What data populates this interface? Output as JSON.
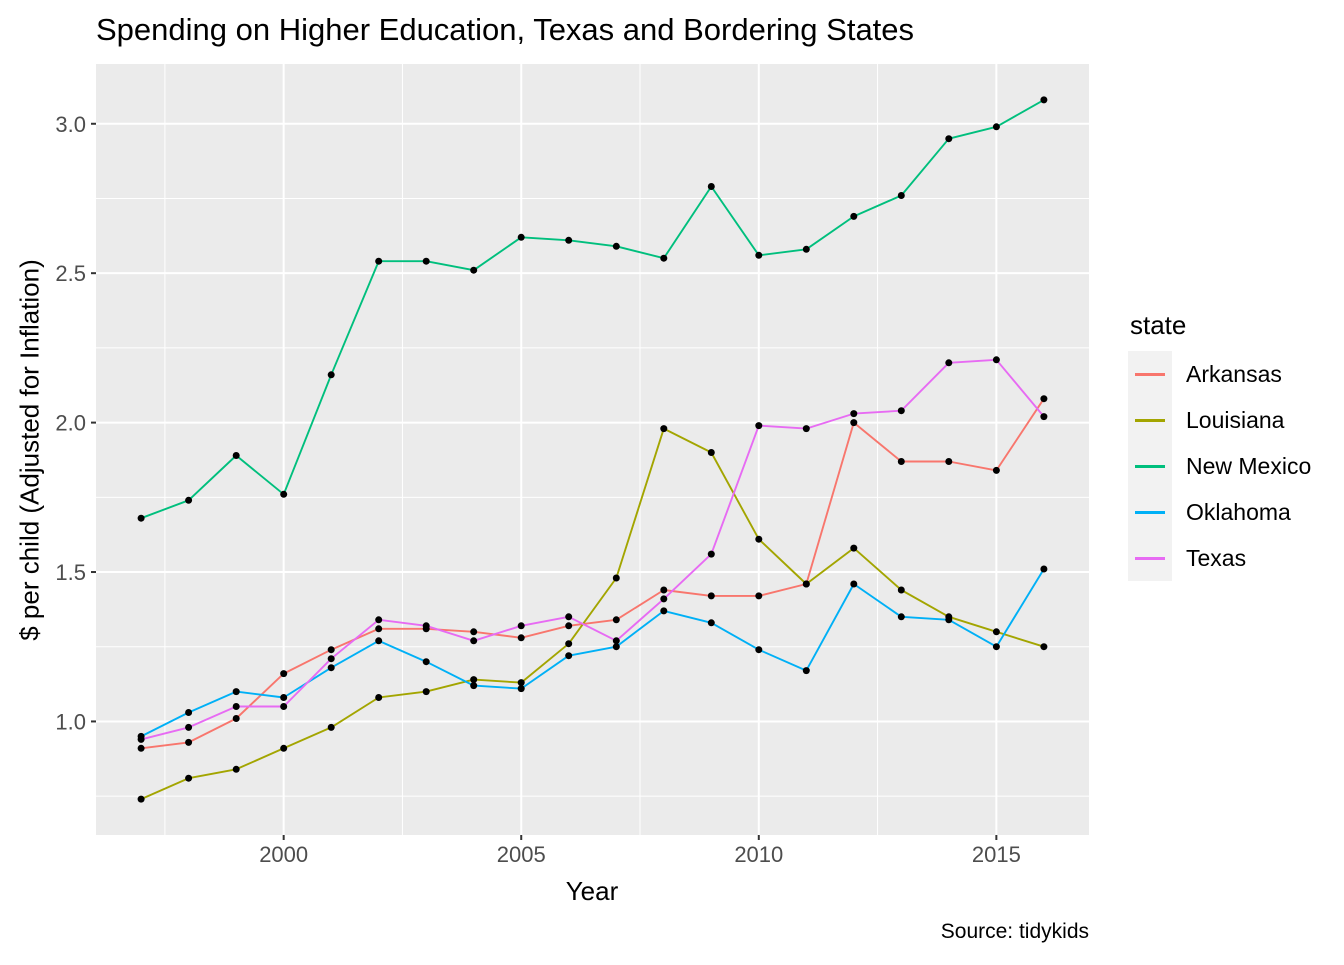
{
  "chart_data": {
    "type": "line",
    "title": "Spending on Higher Education, Texas and Bordering States",
    "xlabel": "Year",
    "ylabel": "$ per child (Adjusted for Inflation)",
    "caption": "Source: tidykids",
    "legend_title": "state",
    "legend_position": "right",
    "grid": true,
    "panel_bg": "#EBEBEB",
    "grid_color": "#FFFFFF",
    "tick_color": "#333333",
    "tick_label_color": "#4D4D4D",
    "point_color": "#000000",
    "xlim": [
      1996.05,
      2016.95
    ],
    "ylim": [
      0.62,
      3.2
    ],
    "x_ticks": [
      2000,
      2005,
      2010,
      2015
    ],
    "x_minor_ticks": [
      1997.5,
      2002.5,
      2007.5,
      2012.5
    ],
    "y_ticks": [
      1.0,
      1.5,
      2.0,
      2.5,
      3.0
    ],
    "y_minor_ticks": [
      0.75,
      1.25,
      1.75,
      2.25,
      2.75
    ],
    "x": [
      1997,
      1998,
      1999,
      2000,
      2001,
      2002,
      2003,
      2004,
      2005,
      2006,
      2007,
      2008,
      2009,
      2010,
      2011,
      2012,
      2013,
      2014,
      2015,
      2016
    ],
    "series": [
      {
        "name": "Arkansas",
        "color": "#F8766D",
        "values": [
          0.91,
          0.93,
          1.01,
          1.16,
          1.24,
          1.31,
          1.31,
          1.3,
          1.28,
          1.32,
          1.34,
          1.44,
          1.42,
          1.42,
          1.46,
          2.0,
          1.87,
          1.87,
          1.84,
          2.08
        ]
      },
      {
        "name": "Louisiana",
        "color": "#A3A500",
        "values": [
          0.74,
          0.81,
          0.84,
          0.91,
          0.98,
          1.08,
          1.1,
          1.14,
          1.13,
          1.26,
          1.48,
          1.98,
          1.9,
          1.61,
          1.46,
          1.58,
          1.44,
          1.35,
          1.3,
          1.25
        ]
      },
      {
        "name": "New Mexico",
        "color": "#00BF7D",
        "values": [
          1.68,
          1.74,
          1.89,
          1.76,
          2.16,
          2.54,
          2.54,
          2.51,
          2.62,
          2.61,
          2.59,
          2.55,
          2.79,
          2.56,
          2.58,
          2.69,
          2.76,
          2.95,
          2.99,
          3.08
        ]
      },
      {
        "name": "Oklahoma",
        "color": "#00B0F6",
        "values": [
          0.95,
          1.03,
          1.1,
          1.08,
          1.18,
          1.27,
          1.2,
          1.12,
          1.11,
          1.22,
          1.25,
          1.37,
          1.33,
          1.24,
          1.17,
          1.46,
          1.35,
          1.34,
          1.25,
          1.51
        ]
      },
      {
        "name": "Texas",
        "color": "#E76BF3",
        "values": [
          0.94,
          0.98,
          1.05,
          1.05,
          1.21,
          1.34,
          1.32,
          1.27,
          1.32,
          1.35,
          1.27,
          1.41,
          1.56,
          1.99,
          1.98,
          2.03,
          2.04,
          2.2,
          2.21,
          2.02
        ]
      }
    ]
  }
}
